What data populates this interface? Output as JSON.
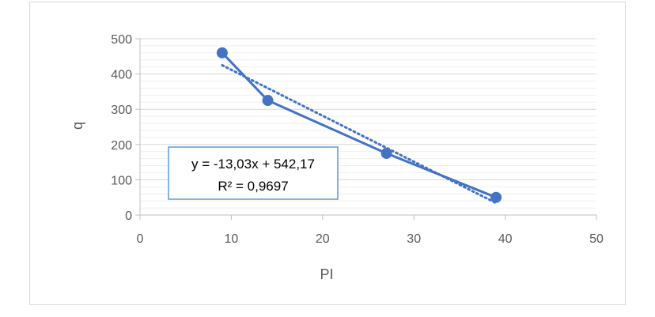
{
  "chart_data": {
    "type": "scatter",
    "title": "",
    "xlabel": "PI",
    "ylabel": "q",
    "xlim": [
      0,
      50
    ],
    "ylim": [
      0,
      500
    ],
    "x_ticks": [
      0,
      10,
      20,
      30,
      40,
      50
    ],
    "y_ticks": [
      0,
      100,
      200,
      300,
      400,
      500
    ],
    "y_minor_step": 20,
    "grid": "horizontal major and minor",
    "series": [
      {
        "color": "#4472c4",
        "style": "line with markers",
        "x": [
          9,
          14,
          27,
          39
        ],
        "y": [
          460,
          325,
          175,
          50
        ]
      }
    ],
    "trendline": {
      "type": "linear",
      "style": "dotted",
      "color": "#4472c4",
      "slope": -13.03,
      "intercept": 542.17,
      "x_range": [
        9,
        39
      ],
      "equation": "y = -13,03x + 542,17",
      "r_squared": "R² = 0,9697"
    }
  }
}
